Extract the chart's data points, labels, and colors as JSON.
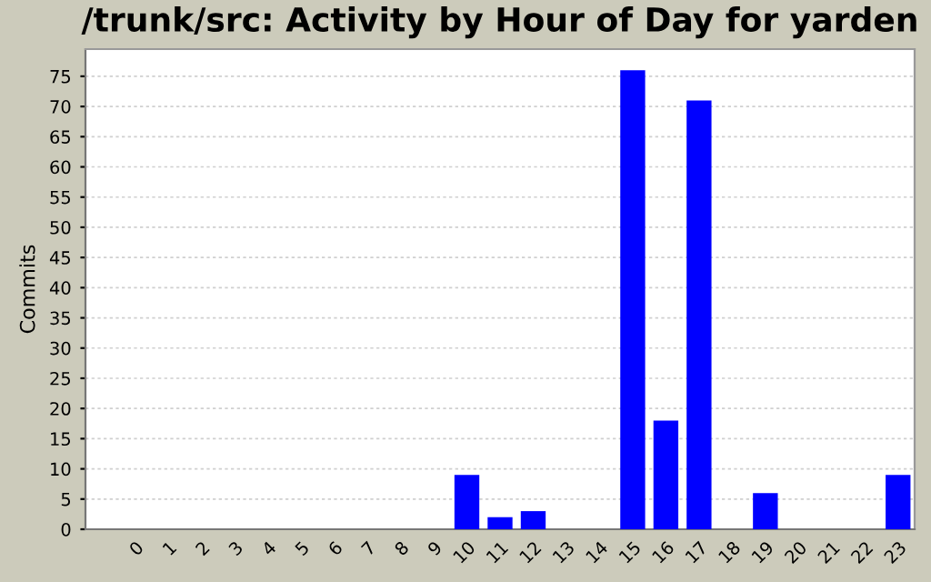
{
  "chart_data": {
    "type": "bar",
    "title": "/trunk/src: Activity by Hour of Day for yarden",
    "ylabel": "Commits",
    "categories": [
      "0",
      "1",
      "2",
      "3",
      "4",
      "5",
      "6",
      "7",
      "8",
      "9",
      "10",
      "11",
      "12",
      "13",
      "14",
      "15",
      "16",
      "17",
      "18",
      "19",
      "20",
      "21",
      "22",
      "23"
    ],
    "values": [
      0,
      0,
      0,
      0,
      0,
      0,
      0,
      0,
      0,
      0,
      9,
      2,
      3,
      0,
      0,
      76,
      18,
      71,
      0,
      6,
      0,
      0,
      0,
      9
    ],
    "color": "#0000ff",
    "ylim": [
      0,
      79.5
    ],
    "yticks": [
      0,
      5,
      10,
      15,
      20,
      25,
      30,
      35,
      40,
      45,
      50,
      55,
      60,
      65,
      70,
      75
    ],
    "grid": "y",
    "legend": false
  }
}
